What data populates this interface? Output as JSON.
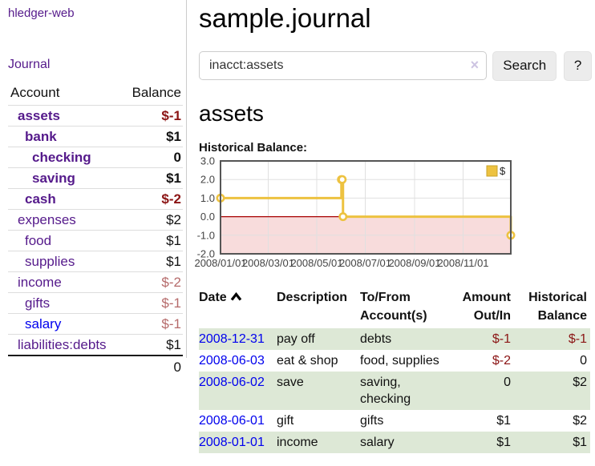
{
  "sidebar": {
    "brand": "hledger-web",
    "journal_link": "Journal",
    "accounts_table": {
      "headers": {
        "account": "Account",
        "balance": "Balance"
      },
      "rows": [
        {
          "name": "assets",
          "balance": "$-1",
          "level": 1,
          "bold": true,
          "negative": "strong"
        },
        {
          "name": "bank",
          "balance": "$1",
          "level": 2,
          "bold": true,
          "negative": "none"
        },
        {
          "name": "checking",
          "balance": "0",
          "level": 3,
          "bold": true,
          "negative": "none"
        },
        {
          "name": "saving",
          "balance": "$1",
          "level": 3,
          "bold": true,
          "negative": "none"
        },
        {
          "name": "cash",
          "balance": "$-2",
          "level": 2,
          "bold": true,
          "negative": "strong"
        },
        {
          "name": "expenses",
          "balance": "$2",
          "level": 1,
          "bold": false,
          "negative": "none"
        },
        {
          "name": "food",
          "balance": "$1",
          "level": 2,
          "bold": false,
          "negative": "none"
        },
        {
          "name": "supplies",
          "balance": "$1",
          "level": 2,
          "bold": false,
          "negative": "none"
        },
        {
          "name": "income",
          "balance": "$-2",
          "level": 1,
          "bold": false,
          "negative": "soft"
        },
        {
          "name": "gifts",
          "balance": "$-1",
          "level": 2,
          "bold": false,
          "negative": "soft"
        },
        {
          "name": "salary",
          "balance": "$-1",
          "level": 2,
          "bold": false,
          "negative": "soft",
          "link_style": "unvisited"
        },
        {
          "name": "liabilities:debts",
          "balance": "$1",
          "level": 1,
          "bold": false,
          "negative": "none"
        }
      ],
      "total": "0"
    }
  },
  "main": {
    "title": "sample.journal",
    "search": {
      "value": "inacct:assets",
      "clear_icon": "×",
      "search_button": "Search",
      "help_button": "?"
    },
    "account_heading": "assets",
    "chart_heading": "Historical Balance:",
    "register_table": {
      "headers": {
        "date": "Date",
        "description": "Description",
        "accounts": "To/From\nAccount(s)",
        "amount": "Amount\nOut/In",
        "balance": "Historical\nBalance"
      },
      "rows": [
        {
          "date": "2008-12-31",
          "description": "pay off",
          "accounts": "debts",
          "amount": "$-1",
          "amount_negative": true,
          "balance": "$-1",
          "balance_negative": true
        },
        {
          "date": "2008-06-03",
          "description": "eat & shop",
          "accounts": "food, supplies",
          "amount": "$-2",
          "amount_negative": true,
          "balance": "0",
          "balance_negative": false
        },
        {
          "date": "2008-06-02",
          "description": "save",
          "accounts": "saving, checking",
          "amount": "0",
          "amount_negative": false,
          "balance": "$2",
          "balance_negative": false
        },
        {
          "date": "2008-06-01",
          "description": "gift",
          "accounts": "gifts",
          "amount": "$1",
          "amount_negative": false,
          "balance": "$2",
          "balance_negative": false
        },
        {
          "date": "2008-01-01",
          "description": "income",
          "accounts": "salary",
          "amount": "$1",
          "amount_negative": false,
          "balance": "$1",
          "balance_negative": false
        }
      ]
    }
  },
  "chart_data": {
    "type": "line",
    "title": "Historical Balance:",
    "steps": true,
    "series": [
      {
        "name": "$",
        "color": "#EDC240",
        "points": [
          [
            "2008/01/01",
            1
          ],
          [
            "2008/06/01",
            2
          ],
          [
            "2008/06/02",
            2
          ],
          [
            "2008/06/03",
            0
          ],
          [
            "2008/12/31",
            -1
          ]
        ]
      }
    ],
    "ylim": [
      -2,
      3
    ],
    "yticks": [
      3,
      2,
      1,
      0,
      -1,
      -2
    ],
    "xticks": [
      "2008/01/01",
      "2008/03/01",
      "2008/05/01",
      "2008/07/01",
      "2008/09/01",
      "2008/11/01"
    ],
    "grid": true,
    "legend_position": "top-right",
    "negative_region_fill": "#f8dcdc",
    "zero_line_color": "#a80000",
    "grid_line_color": "#e0e0e0",
    "border_color": "#555555"
  },
  "colors": {
    "link_visited_purple": "#551A8B",
    "link_unvisited_blue": "#0000EE",
    "negative_strong_red": "#8b1414",
    "negative_soft_red": "#b56a6a",
    "table_stripe_green": "#dde8d6",
    "series_yellow": "#EDC240",
    "button_gray": "#ececec"
  }
}
